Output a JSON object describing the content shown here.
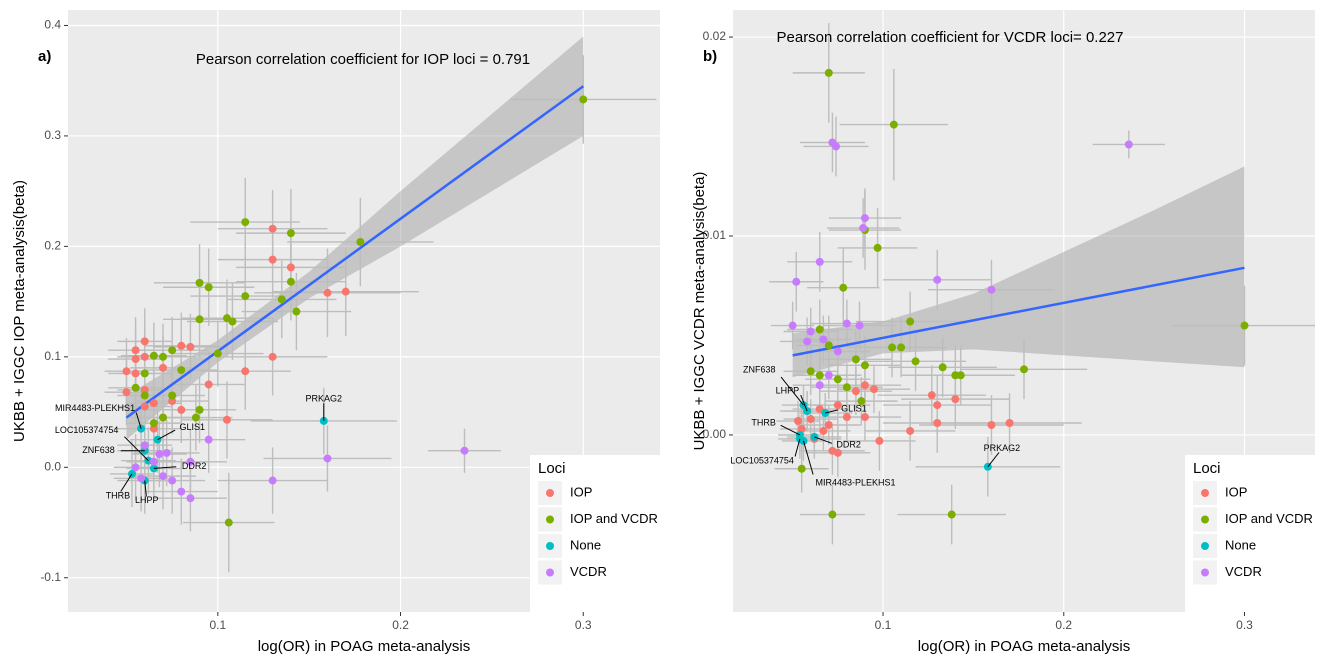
{
  "chart_data": [
    {
      "type": "scatter",
      "title": "a)",
      "annotation": "Pearson correlation coefficient for IOP loci = 0.791",
      "x_label": "log(OR) in POAG meta-analysis",
      "y_label": "UKBB + IGGC IOP meta-analysis(beta)",
      "xlim": [
        0.018,
        0.342
      ],
      "ylim": [
        -0.131,
        0.414
      ],
      "xticks": [
        0.1,
        0.2,
        0.3
      ],
      "yticks": [
        -0.1,
        {
          "value": 0,
          "label": "0.0"
        },
        0.1,
        0.2,
        0.3,
        0.4
      ],
      "grid": true,
      "legend_title": "Loci",
      "legend": "lower right",
      "fit": {
        "color": "#3366ff",
        "x": [
          0.05,
          0.3
        ],
        "y": [
          0.045,
          0.345
        ]
      },
      "band": {
        "color": "#999999",
        "x": [
          0.05,
          0.1,
          0.15,
          0.2,
          0.25,
          0.3
        ],
        "lower": [
          0.025,
          0.095,
          0.153,
          0.2,
          0.25,
          0.3
        ],
        "upper": [
          0.065,
          0.115,
          0.177,
          0.25,
          0.32,
          0.39
        ]
      },
      "series": [
        {
          "name": "IOP",
          "color": "#f8766d",
          "x": [
            0.13,
            0.13,
            0.14,
            0.16,
            0.17,
            0.115,
            0.13,
            0.095,
            0.105,
            0.08,
            0.085,
            0.06,
            0.055,
            0.055,
            0.06,
            0.05,
            0.055,
            0.07,
            0.075,
            0.065,
            0.06,
            0.08,
            0.05,
            0.06,
            0.07,
            0.065
          ],
          "values": [
            0.216,
            0.188,
            0.181,
            0.158,
            0.159,
            0.087,
            0.1,
            0.075,
            0.043,
            0.11,
            0.109,
            0.114,
            0.106,
            0.098,
            0.1,
            0.087,
            0.085,
            0.09,
            0.06,
            0.058,
            0.055,
            0.052,
            0.068,
            0.07,
            0.045,
            0.035
          ],
          "xerr": [
            0.03,
            0.03,
            0.03,
            0.04,
            0.04,
            0.025,
            0.03,
            0.02,
            0.025,
            0.02,
            0.02,
            0.015,
            0.015,
            0.015,
            0.015,
            0.012,
            0.015,
            0.018,
            0.02,
            0.015,
            0.015,
            0.02,
            0.012,
            0.015,
            0.018,
            0.015
          ],
          "yerr": [
            0.035,
            0.035,
            0.035,
            0.04,
            0.04,
            0.035,
            0.035,
            0.03,
            0.035,
            0.03,
            0.03,
            0.03,
            0.03,
            0.03,
            0.03,
            0.03,
            0.03,
            0.03,
            0.03,
            0.03,
            0.03,
            0.03,
            0.03,
            0.03,
            0.03,
            0.03
          ]
        },
        {
          "name": "IOP and VCDR",
          "color": "#7cae00",
          "x": [
            0.3,
            0.178,
            0.115,
            0.14,
            0.095,
            0.09,
            0.115,
            0.135,
            0.14,
            0.143,
            0.105,
            0.108,
            0.09,
            0.1,
            0.075,
            0.07,
            0.065,
            0.06,
            0.08,
            0.075,
            0.06,
            0.055,
            0.09,
            0.088,
            0.07,
            0.106,
            0.065
          ],
          "values": [
            0.333,
            0.204,
            0.222,
            0.212,
            0.163,
            0.167,
            0.155,
            0.152,
            0.168,
            0.141,
            0.135,
            0.132,
            0.134,
            0.103,
            0.106,
            0.1,
            0.101,
            0.085,
            0.088,
            0.065,
            0.065,
            0.072,
            0.052,
            0.045,
            0.045,
            -0.05,
            0.04
          ],
          "xerr": [
            0.04,
            0.04,
            0.03,
            0.03,
            0.025,
            0.025,
            0.03,
            0.03,
            0.03,
            0.03,
            0.025,
            0.025,
            0.02,
            0.025,
            0.02,
            0.018,
            0.018,
            0.015,
            0.02,
            0.018,
            0.015,
            0.015,
            0.02,
            0.02,
            0.018,
            0.025,
            0.015
          ],
          "yerr": [
            0.04,
            0.04,
            0.04,
            0.04,
            0.035,
            0.035,
            0.035,
            0.035,
            0.035,
            0.035,
            0.035,
            0.035,
            0.035,
            0.03,
            0.03,
            0.03,
            0.03,
            0.03,
            0.03,
            0.03,
            0.03,
            0.03,
            0.03,
            0.03,
            0.03,
            0.045,
            0.03
          ]
        },
        {
          "name": "None",
          "color": "#00bfc4",
          "x": [
            0.158,
            0.067,
            0.06,
            0.065,
            0.06,
            0.053,
            0.062,
            0.058
          ],
          "values": [
            0.042,
            0.025,
            0.015,
            -0.001,
            -0.012,
            -0.006,
            0.006,
            0.035
          ],
          "xerr": [
            0.04,
            0.015,
            0.015,
            0.015,
            0.015,
            0.012,
            0.015,
            0.015
          ],
          "yerr": [
            0.03,
            0.03,
            0.03,
            0.03,
            0.03,
            0.03,
            0.03,
            0.03
          ],
          "labels": [
            "PRKAG2",
            "GLIS1",
            "ZNF638",
            "DDR2",
            "LHPP",
            "THRB",
            "LOC105374754",
            "MIR4483-PLEKHS1"
          ]
        },
        {
          "name": "VCDR",
          "color": "#c77cff",
          "x": [
            0.235,
            0.16,
            0.13,
            0.095,
            0.085,
            0.085,
            0.08,
            0.075,
            0.07,
            0.072,
            0.068,
            0.065,
            0.058,
            0.055,
            0.06
          ],
          "values": [
            0.015,
            0.008,
            -0.012,
            0.025,
            0.005,
            -0.028,
            -0.022,
            -0.012,
            -0.008,
            0.013,
            0.012,
            0.005,
            -0.01,
            0.0,
            0.02
          ],
          "xerr": [
            0.02,
            0.035,
            0.03,
            0.02,
            0.02,
            0.02,
            0.02,
            0.018,
            0.018,
            0.018,
            0.015,
            0.015,
            0.015,
            0.012,
            0.015
          ],
          "yerr": [
            0.02,
            0.03,
            0.03,
            0.03,
            0.03,
            0.03,
            0.03,
            0.03,
            0.03,
            0.03,
            0.03,
            0.03,
            0.03,
            0.03,
            0.03
          ]
        }
      ]
    },
    {
      "type": "scatter",
      "title": "b)",
      "annotation": "Pearson correlation coefficient for VCDR loci= 0.227",
      "x_label": "log(OR) in POAG meta-analysis",
      "y_label": "UKBB + IGGC VCDR meta-analysis(beta)",
      "xlim": [
        0.017,
        0.339
      ],
      "ylim": [
        -0.0089,
        0.02136
      ],
      "xticks": [
        0.1,
        0.2,
        0.3
      ],
      "yticks": [
        {
          "value": 0,
          "label": "0.00"
        },
        {
          "value": 0.01,
          "label": "0.01"
        },
        {
          "value": 0.02,
          "label": "0.02"
        }
      ],
      "grid": true,
      "legend_title": "Loci",
      "legend": "lower right",
      "fit": {
        "color": "#3366ff",
        "x": [
          0.05,
          0.3
        ],
        "y": [
          0.004,
          0.0084
        ]
      },
      "band": {
        "color": "#999999",
        "x": [
          0.05,
          0.1,
          0.15,
          0.2,
          0.25,
          0.3
        ],
        "lower": [
          0.0029,
          0.0041,
          0.0043,
          0.004,
          0.0037,
          0.0034
        ],
        "upper": [
          0.0051,
          0.0057,
          0.0071,
          0.0092,
          0.0113,
          0.0135
        ]
      },
      "series": [
        {
          "name": "IOP",
          "color": "#f8766d",
          "x": [
            0.16,
            0.17,
            0.13,
            0.127,
            0.14,
            0.13,
            0.115,
            0.098,
            0.09,
            0.085,
            0.09,
            0.095,
            0.075,
            0.072,
            0.065,
            0.06,
            0.058,
            0.055,
            0.053,
            0.07,
            0.067,
            0.062,
            0.075,
            0.08
          ],
          "values": [
            0.0005,
            0.0006,
            0.0015,
            0.002,
            0.0018,
            0.0006,
            0.0002,
            -0.0003,
            0.0009,
            0.0022,
            0.0025,
            0.0023,
            -0.0009,
            -0.0008,
            0.0013,
            0.0008,
            0.0012,
            0.0003,
            0.0007,
            0.0005,
            0.0002,
            -0.0002,
            0.0015,
            0.0009
          ],
          "xerr": [
            0.04,
            0.04,
            0.03,
            0.03,
            0.03,
            0.03,
            0.025,
            0.02,
            0.02,
            0.02,
            0.02,
            0.02,
            0.018,
            0.018,
            0.015,
            0.015,
            0.015,
            0.012,
            0.012,
            0.018,
            0.015,
            0.015,
            0.018,
            0.02
          ],
          "yerr": [
            0.0015,
            0.0015,
            0.0015,
            0.0015,
            0.0015,
            0.0015,
            0.0015,
            0.0015,
            0.0012,
            0.0012,
            0.0012,
            0.0012,
            0.0012,
            0.0012,
            0.001,
            0.001,
            0.001,
            0.001,
            0.001,
            0.001,
            0.001,
            0.001,
            0.0012,
            0.0012
          ]
        },
        {
          "name": "IOP and VCDR",
          "color": "#7cae00",
          "x": [
            0.07,
            0.106,
            0.09,
            0.097,
            0.078,
            0.3,
            0.115,
            0.105,
            0.11,
            0.118,
            0.133,
            0.14,
            0.143,
            0.178,
            0.085,
            0.09,
            0.065,
            0.07,
            0.06,
            0.065,
            0.075,
            0.08,
            0.072,
            0.138,
            0.055,
            0.088
          ],
          "values": [
            0.0182,
            0.0156,
            0.0103,
            0.0094,
            0.0074,
            0.0055,
            0.0057,
            0.0044,
            0.0044,
            0.0037,
            0.0034,
            0.003,
            0.003,
            0.0033,
            0.0038,
            0.0035,
            0.0053,
            0.0045,
            0.0032,
            0.003,
            0.0028,
            0.0024,
            -0.004,
            -0.004,
            -0.0017,
            0.0017
          ],
          "xerr": [
            0.02,
            0.03,
            0.02,
            0.022,
            0.02,
            0.04,
            0.03,
            0.025,
            0.025,
            0.028,
            0.03,
            0.03,
            0.03,
            0.035,
            0.02,
            0.02,
            0.018,
            0.018,
            0.015,
            0.015,
            0.018,
            0.02,
            0.018,
            0.03,
            0.015,
            0.02
          ],
          "yerr": [
            0.0025,
            0.0028,
            0.002,
            0.002,
            0.002,
            0.002,
            0.0015,
            0.0015,
            0.0015,
            0.0015,
            0.0015,
            0.0015,
            0.0015,
            0.0015,
            0.0015,
            0.0015,
            0.0015,
            0.0015,
            0.0012,
            0.0012,
            0.0012,
            0.0012,
            0.0015,
            0.0015,
            0.0012,
            0.0012
          ]
        },
        {
          "name": "None",
          "color": "#00bfc4",
          "x": [
            0.158,
            0.068,
            0.056,
            0.058,
            0.054,
            0.062,
            0.054,
            0.056
          ],
          "values": [
            -0.0016,
            0.0011,
            0.0015,
            0.0012,
            0.0,
            -0.0001,
            -0.0002,
            -0.0003
          ],
          "xerr": [
            0.04,
            0.015,
            0.012,
            0.012,
            0.012,
            0.015,
            0.012,
            0.012
          ],
          "yerr": [
            0.0015,
            0.001,
            0.001,
            0.001,
            0.001,
            0.001,
            0.001,
            0.001
          ],
          "labels": [
            "PRKAG2",
            "GLIS1",
            "ZNF638",
            "LHPP",
            "THRB",
            "DDR2",
            "LOC105374754",
            "MIR4483-PLEKHS1"
          ]
        },
        {
          "name": "VCDR",
          "color": "#c77cff",
          "x": [
            0.072,
            0.074,
            0.236,
            0.09,
            0.089,
            0.065,
            0.13,
            0.16,
            0.052,
            0.08,
            0.087,
            0.05,
            0.06,
            0.067,
            0.058,
            0.075,
            0.07,
            0.065
          ],
          "values": [
            0.0147,
            0.0145,
            0.0146,
            0.0109,
            0.0104,
            0.0087,
            0.0078,
            0.0073,
            0.0077,
            0.0056,
            0.0055,
            0.0055,
            0.0052,
            0.0048,
            0.0047,
            0.0042,
            0.003,
            0.0025
          ],
          "xerr": [
            0.018,
            0.018,
            0.02,
            0.02,
            0.02,
            0.018,
            0.03,
            0.035,
            0.015,
            0.02,
            0.02,
            0.012,
            0.015,
            0.015,
            0.015,
            0.018,
            0.018,
            0.015
          ],
          "yerr": [
            0.0015,
            0.0015,
            0.0007,
            0.0015,
            0.0015,
            0.0015,
            0.0015,
            0.0015,
            0.0015,
            0.0012,
            0.0012,
            0.0012,
            0.0012,
            0.0012,
            0.0012,
            0.0012,
            0.0012,
            0.0012
          ]
        }
      ]
    }
  ]
}
